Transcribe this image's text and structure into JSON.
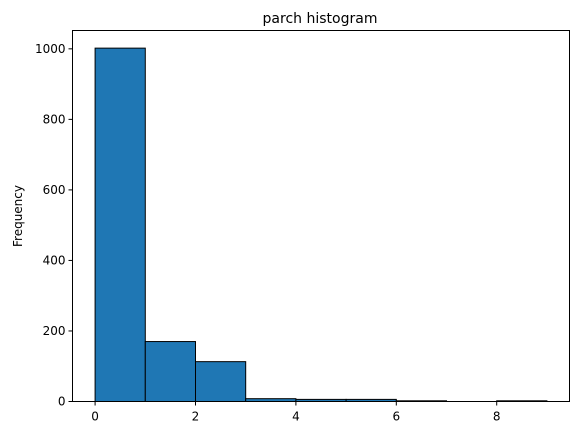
{
  "chart_data": {
    "type": "bar",
    "title": "parch histogram",
    "xlabel": "",
    "ylabel": "Frequency",
    "bins": [
      {
        "start": 0,
        "end": 1,
        "value": 1002
      },
      {
        "start": 1,
        "end": 2,
        "value": 170
      },
      {
        "start": 2,
        "end": 3,
        "value": 113
      },
      {
        "start": 3,
        "end": 4,
        "value": 8
      },
      {
        "start": 4,
        "end": 5,
        "value": 6
      },
      {
        "start": 5,
        "end": 6,
        "value": 6
      },
      {
        "start": 6,
        "end": 7,
        "value": 2
      },
      {
        "start": 7,
        "end": 8,
        "value": 0
      },
      {
        "start": 8,
        "end": 9,
        "value": 2
      }
    ],
    "xlim": [
      -0.45,
      9.45
    ],
    "ylim": [
      0,
      1052
    ],
    "xticks": [
      0,
      2,
      4,
      6,
      8
    ],
    "yticks": [
      0,
      200,
      400,
      600,
      800,
      1000
    ],
    "grid": false,
    "colors": {
      "bar_fill": "#1f77b4",
      "bar_edge": "#000000"
    }
  }
}
